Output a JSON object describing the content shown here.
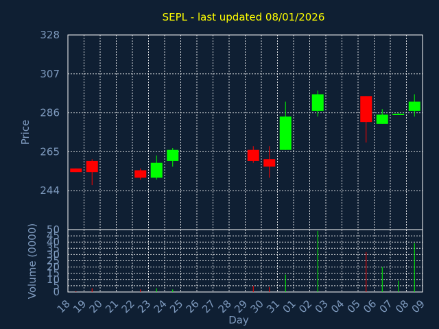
{
  "chart_data": [
    {
      "type": "candlestick",
      "title": "SEPL - last updated 08/01/2026",
      "ylabel": "Price",
      "xlabel": "Day",
      "ylim": [
        223,
        328
      ],
      "yticks": [
        244,
        265,
        286,
        307,
        328
      ],
      "x_ticks": [
        "18",
        "19",
        "20",
        "21",
        "22",
        "23",
        "24",
        "25",
        "26",
        "27",
        "28",
        "29",
        "30",
        "31",
        "01",
        "02",
        "03",
        "04",
        "05",
        "06",
        "07",
        "08",
        "09"
      ],
      "grid": true,
      "colors": {
        "up": "#00ff00",
        "down": "#ff0000",
        "background": "#0f1f33",
        "grid": "#ffffff",
        "title": "#ffff00",
        "axis_text": "#7f9bbf"
      },
      "candles": [
        {
          "day": "18",
          "open": 256,
          "high": 256,
          "low": 254,
          "close": 254
        },
        {
          "day": "19",
          "open": 260,
          "high": 261,
          "low": 247,
          "close": 254
        },
        {
          "day": "22",
          "open": 255,
          "high": 256,
          "low": 250,
          "close": 251
        },
        {
          "day": "23",
          "open": 251,
          "high": 263,
          "low": 250,
          "close": 259
        },
        {
          "day": "24",
          "open": 260,
          "high": 267,
          "low": 257,
          "close": 266
        },
        {
          "day": "29",
          "open": 266,
          "high": 268,
          "low": 259,
          "close": 260
        },
        {
          "day": "30",
          "open": 261,
          "high": 268,
          "low": 251,
          "close": 257
        },
        {
          "day": "31",
          "open": 266,
          "high": 292,
          "low": 266,
          "close": 284
        },
        {
          "day": "02",
          "open": 287,
          "high": 298,
          "low": 284,
          "close": 296
        },
        {
          "day": "05",
          "open": 295,
          "high": 295,
          "low": 270,
          "close": 281
        },
        {
          "day": "06",
          "open": 280,
          "high": 288,
          "low": 280,
          "close": 285
        },
        {
          "day": "07",
          "open": 285,
          "high": 286,
          "low": 285,
          "close": 285.5
        },
        {
          "day": "08",
          "open": 287,
          "high": 296,
          "low": 284,
          "close": 292
        }
      ]
    },
    {
      "type": "bar",
      "ylabel": "Volume (0000)",
      "xlabel": "Day",
      "ylim": [
        0,
        50
      ],
      "yticks": [
        0,
        5,
        10,
        15,
        20,
        25,
        30,
        35,
        40,
        45,
        50
      ],
      "x_ticks": [
        "18",
        "19",
        "20",
        "21",
        "22",
        "23",
        "24",
        "25",
        "26",
        "27",
        "28",
        "29",
        "30",
        "31",
        "01",
        "02",
        "03",
        "04",
        "05",
        "06",
        "07",
        "08",
        "09"
      ],
      "grid": true,
      "bars": [
        {
          "day": "18",
          "value": 0.5,
          "direction": "down"
        },
        {
          "day": "19",
          "value": 3,
          "direction": "down"
        },
        {
          "day": "22",
          "value": 2,
          "direction": "down"
        },
        {
          "day": "23",
          "value": 3,
          "direction": "up"
        },
        {
          "day": "24",
          "value": 2,
          "direction": "up"
        },
        {
          "day": "29",
          "value": 5,
          "direction": "down"
        },
        {
          "day": "30",
          "value": 4,
          "direction": "down"
        },
        {
          "day": "31",
          "value": 14,
          "direction": "up"
        },
        {
          "day": "02",
          "value": 49,
          "direction": "up"
        },
        {
          "day": "05",
          "value": 32,
          "direction": "down"
        },
        {
          "day": "06",
          "value": 20,
          "direction": "up"
        },
        {
          "day": "07",
          "value": 9,
          "direction": "up"
        },
        {
          "day": "08",
          "value": 39,
          "direction": "up"
        }
      ]
    }
  ]
}
